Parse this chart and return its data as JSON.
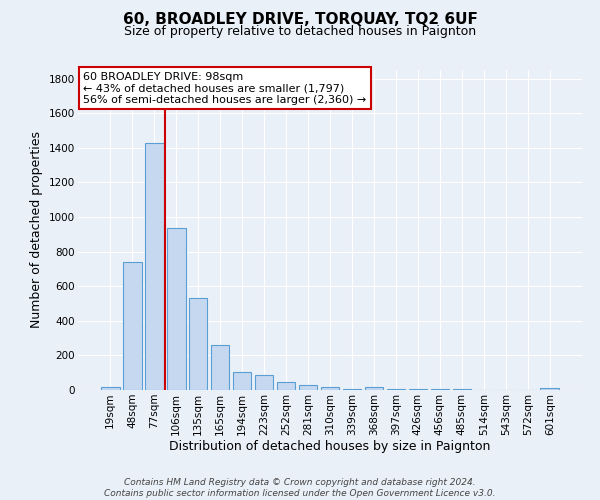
{
  "title1": "60, BROADLEY DRIVE, TORQUAY, TQ2 6UF",
  "title2": "Size of property relative to detached houses in Paignton",
  "xlabel": "Distribution of detached houses by size in Paignton",
  "ylabel": "Number of detached properties",
  "categories": [
    "19sqm",
    "48sqm",
    "77sqm",
    "106sqm",
    "135sqm",
    "165sqm",
    "194sqm",
    "223sqm",
    "252sqm",
    "281sqm",
    "310sqm",
    "339sqm",
    "368sqm",
    "397sqm",
    "426sqm",
    "456sqm",
    "485sqm",
    "514sqm",
    "543sqm",
    "572sqm",
    "601sqm"
  ],
  "values": [
    20,
    740,
    1430,
    935,
    530,
    260,
    105,
    88,
    45,
    28,
    15,
    5,
    15,
    3,
    3,
    3,
    3,
    1,
    1,
    1,
    10
  ],
  "bar_color": "#c5d8f0",
  "bar_edge_color": "#5a9fd4",
  "bg_color": "#eaf0f8",
  "grid_color": "#ffffff",
  "vline_color": "#cc0000",
  "annotation_title": "60 BROADLEY DRIVE: 98sqm",
  "annotation_line2": "← 43% of detached houses are smaller (1,797)",
  "annotation_line3": "56% of semi-detached houses are larger (2,360) →",
  "annotation_box_color": "#ffffff",
  "annotation_box_edge": "#cc0000",
  "footer1": "Contains HM Land Registry data © Crown copyright and database right 2024.",
  "footer2": "Contains public sector information licensed under the Open Government Licence v3.0.",
  "ylim": [
    0,
    1850
  ],
  "yticks": [
    0,
    200,
    400,
    600,
    800,
    1000,
    1200,
    1400,
    1600,
    1800
  ],
  "title1_fontsize": 11,
  "title2_fontsize": 9,
  "xlabel_fontsize": 9,
  "ylabel_fontsize": 9,
  "tick_fontsize": 7.5,
  "footer_fontsize": 6.5,
  "annot_fontsize": 8
}
